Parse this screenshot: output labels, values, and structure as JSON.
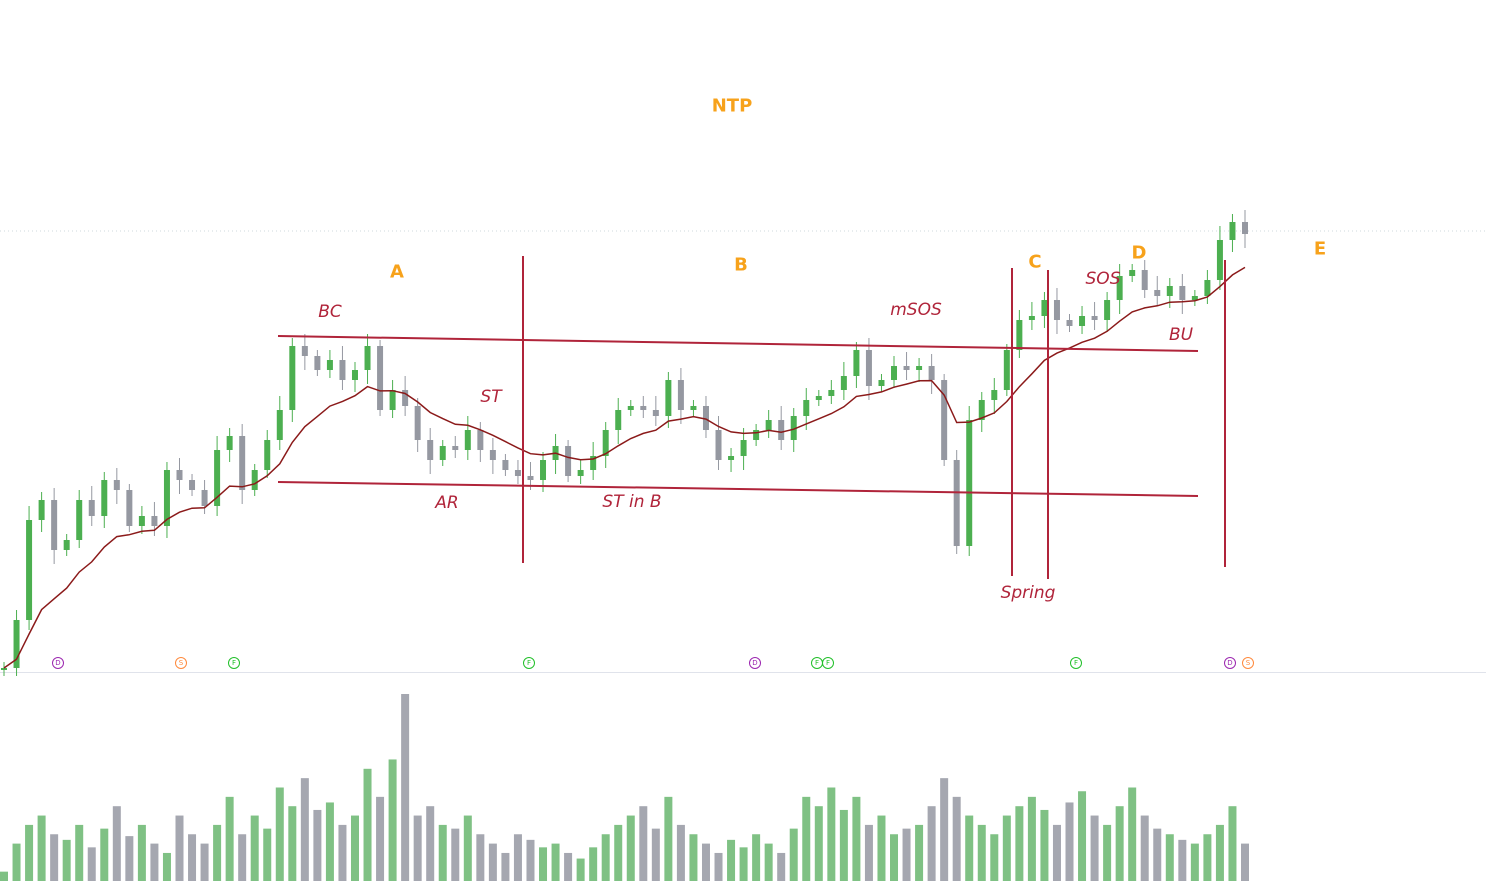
{
  "title": "NTP",
  "phases": [
    "A",
    "B",
    "C",
    "D",
    "E"
  ],
  "events": {
    "bc": "BC",
    "st": "ST",
    "ar": "AR",
    "st_in_b": "ST in B",
    "msos": "mSOS",
    "sos": "SOS",
    "bu": "BU",
    "spring": "Spring"
  },
  "markers": [
    {
      "letter": "D",
      "color": "#9c27b0"
    },
    {
      "letter": "S",
      "color": "#ff8a3d"
    },
    {
      "letter": "F",
      "color": "#22c02a"
    },
    {
      "letter": "F",
      "color": "#22c02a"
    },
    {
      "letter": "D",
      "color": "#9c27b0"
    },
    {
      "letter": "F",
      "color": "#22c02a"
    },
    {
      "letter": "F",
      "color": "#22c02a"
    },
    {
      "letter": "F",
      "color": "#22c02a"
    },
    {
      "letter": "D",
      "color": "#9c27b0"
    },
    {
      "letter": "S",
      "color": "#ff8a3d"
    }
  ],
  "colors": {
    "up": "#4caf50",
    "down": "#9598a1",
    "ma": "#8b1a1a",
    "lines": "#b0243a",
    "vol_up": "#7fc184",
    "vol_down": "#a5a7b0"
  },
  "chart_data": {
    "type": "candlestick",
    "title": "NTP",
    "ma_period": 10,
    "closes": [
      2,
      26,
      76,
      86,
      61,
      66,
      86,
      78,
      96,
      91,
      73,
      78,
      73,
      101,
      96,
      91,
      83,
      111,
      118,
      91,
      101,
      116,
      131,
      163,
      158,
      151,
      156,
      146,
      151,
      163,
      131,
      141,
      133,
      116,
      106,
      113,
      111,
      121,
      111,
      106,
      101,
      98,
      96,
      106,
      113,
      98,
      101,
      108,
      121,
      131,
      133,
      131,
      128,
      146,
      131,
      133,
      121,
      106,
      108,
      116,
      121,
      126,
      116,
      128,
      136,
      138,
      141,
      148,
      161,
      143,
      146,
      153,
      151,
      153,
      146,
      106,
      63,
      126,
      136,
      141,
      161,
      176,
      178,
      186,
      176,
      173,
      178,
      176,
      186,
      198,
      201,
      191,
      188,
      193,
      186,
      188,
      196,
      216,
      225,
      219
    ],
    "volumes": [
      5,
      20,
      30,
      35,
      25,
      22,
      30,
      18,
      28,
      40,
      24,
      30,
      20,
      15,
      35,
      25,
      20,
      30,
      45,
      25,
      35,
      28,
      50,
      40,
      55,
      38,
      42,
      30,
      35,
      60,
      45,
      65,
      100,
      35,
      40,
      30,
      28,
      35,
      25,
      20,
      15,
      25,
      22,
      18,
      20,
      15,
      12,
      18,
      25,
      30,
      35,
      40,
      28,
      45,
      30,
      25,
      20,
      15,
      22,
      18,
      25,
      20,
      15,
      28,
      45,
      40,
      50,
      38,
      45,
      30,
      35,
      25,
      28,
      30,
      40,
      55,
      45,
      35,
      30,
      25,
      35,
      40,
      45,
      38,
      30,
      42,
      48,
      35,
      30,
      40,
      50,
      35,
      28,
      25,
      22,
      20,
      25,
      30,
      40,
      20
    ],
    "price_range": [
      0,
      226
    ]
  }
}
